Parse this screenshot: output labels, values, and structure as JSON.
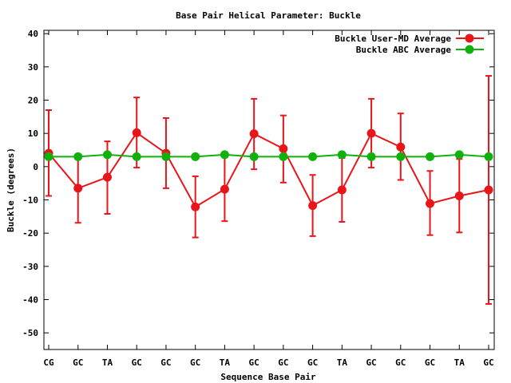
{
  "chart_data": {
    "type": "line",
    "title": "Base Pair Helical Parameter: Buckle",
    "xlabel": "Sequence Base Pair",
    "ylabel": "Buckle (degrees)",
    "categories": [
      "CG",
      "GC",
      "TA",
      "GC",
      "GC",
      "GC",
      "TA",
      "GC",
      "GC",
      "GC",
      "TA",
      "GC",
      "GC",
      "GC",
      "TA",
      "GC"
    ],
    "ylim": [
      -55,
      41
    ],
    "yticks": [
      -50,
      -40,
      -30,
      -20,
      -10,
      0,
      10,
      20,
      30,
      40
    ],
    "ytick_labels": [
      "-50",
      "-40",
      "-30",
      "-20",
      "-10",
      "0",
      "10",
      "20",
      "30",
      "40"
    ],
    "grid": false,
    "legend_position": "top-right",
    "series": [
      {
        "name": "Buckle User-MD Average",
        "color": "#e8161a",
        "values": [
          4.0,
          -6.5,
          -3.2,
          10.2,
          4.0,
          -12.1,
          -6.8,
          9.9,
          5.4,
          -11.7,
          -7.0,
          10.0,
          5.9,
          -11.1,
          -8.8,
          -7.0
        ],
        "error_low": [
          -8.8,
          -16.9,
          -14.2,
          -0.3,
          -6.5,
          -21.3,
          -16.4,
          -0.8,
          -4.8,
          -20.9,
          -16.6,
          -0.3,
          -4.0,
          -20.6,
          -19.8,
          -41.3
        ],
        "error_high": [
          17.0,
          3.4,
          7.6,
          20.8,
          14.6,
          -2.9,
          2.8,
          20.4,
          15.4,
          -2.5,
          2.6,
          20.4,
          16.0,
          -1.3,
          2.3,
          27.3
        ]
      },
      {
        "name": "Buckle ABC Average",
        "color": "#11b10d",
        "values": [
          3.0,
          3.0,
          3.6,
          3.0,
          3.0,
          3.0,
          3.6,
          3.0,
          3.0,
          3.0,
          3.6,
          3.0,
          3.0,
          3.0,
          3.6,
          3.0
        ]
      }
    ]
  }
}
